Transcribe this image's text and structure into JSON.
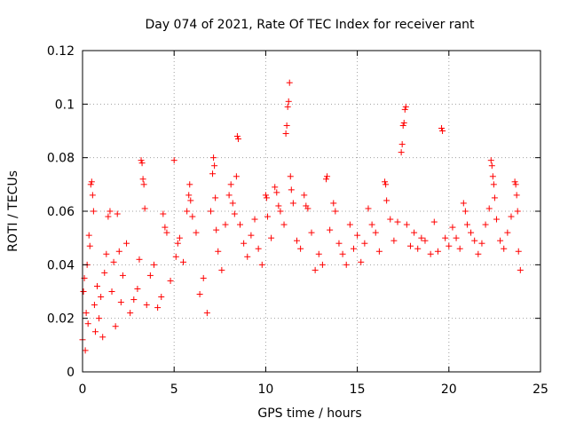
{
  "chart_data": {
    "type": "scatter",
    "title": "Day 074 of 2021, Rate Of TEC Index for receiver rant",
    "xlabel": "GPS time / hours",
    "ylabel": "ROTI / TECUs",
    "xlim": [
      0,
      25
    ],
    "ylim": [
      0,
      0.12
    ],
    "xticks": [
      0,
      5,
      10,
      15,
      20,
      25
    ],
    "xtick_labels": [
      "0",
      "5",
      "10",
      "15",
      "20",
      "25"
    ],
    "yticks": [
      0,
      0.02,
      0.04,
      0.06,
      0.08,
      0.1,
      0.12
    ],
    "ytick_labels": [
      "0",
      "0.02",
      "0.04",
      "0.06",
      "0.08",
      "0.1",
      "0.12"
    ],
    "grid": true,
    "marker": "+",
    "series": [
      {
        "name": "ROTI",
        "color": "#ff0000",
        "points": [
          [
            0.0,
            0.012
          ],
          [
            0.05,
            0.03
          ],
          [
            0.1,
            0.035
          ],
          [
            0.15,
            0.008
          ],
          [
            0.2,
            0.022
          ],
          [
            0.25,
            0.04
          ],
          [
            0.3,
            0.018
          ],
          [
            0.35,
            0.051
          ],
          [
            0.4,
            0.047
          ],
          [
            0.45,
            0.07
          ],
          [
            0.5,
            0.071
          ],
          [
            0.55,
            0.066
          ],
          [
            0.6,
            0.06
          ],
          [
            0.65,
            0.025
          ],
          [
            0.7,
            0.015
          ],
          [
            0.8,
            0.032
          ],
          [
            0.9,
            0.02
          ],
          [
            1.0,
            0.028
          ],
          [
            1.1,
            0.013
          ],
          [
            1.2,
            0.037
          ],
          [
            1.3,
            0.044
          ],
          [
            1.4,
            0.058
          ],
          [
            1.5,
            0.06
          ],
          [
            1.6,
            0.03
          ],
          [
            1.7,
            0.041
          ],
          [
            1.8,
            0.017
          ],
          [
            1.9,
            0.059
          ],
          [
            2.0,
            0.045
          ],
          [
            2.1,
            0.026
          ],
          [
            2.2,
            0.036
          ],
          [
            2.4,
            0.048
          ],
          [
            2.6,
            0.022
          ],
          [
            2.8,
            0.027
          ],
          [
            3.0,
            0.031
          ],
          [
            3.1,
            0.042
          ],
          [
            3.2,
            0.079
          ],
          [
            3.25,
            0.078
          ],
          [
            3.3,
            0.072
          ],
          [
            3.35,
            0.07
          ],
          [
            3.4,
            0.061
          ],
          [
            3.5,
            0.025
          ],
          [
            3.7,
            0.036
          ],
          [
            3.9,
            0.04
          ],
          [
            4.1,
            0.024
          ],
          [
            4.3,
            0.028
          ],
          [
            4.4,
            0.059
          ],
          [
            4.5,
            0.054
          ],
          [
            4.6,
            0.052
          ],
          [
            4.8,
            0.034
          ],
          [
            5.0,
            0.079
          ],
          [
            5.1,
            0.043
          ],
          [
            5.2,
            0.048
          ],
          [
            5.3,
            0.05
          ],
          [
            5.5,
            0.041
          ],
          [
            5.7,
            0.06
          ],
          [
            5.8,
            0.066
          ],
          [
            5.85,
            0.07
          ],
          [
            5.9,
            0.064
          ],
          [
            6.0,
            0.058
          ],
          [
            6.2,
            0.052
          ],
          [
            6.4,
            0.029
          ],
          [
            6.6,
            0.035
          ],
          [
            6.8,
            0.022
          ],
          [
            7.0,
            0.06
          ],
          [
            7.1,
            0.074
          ],
          [
            7.15,
            0.08
          ],
          [
            7.2,
            0.077
          ],
          [
            7.25,
            0.065
          ],
          [
            7.3,
            0.053
          ],
          [
            7.4,
            0.045
          ],
          [
            7.6,
            0.038
          ],
          [
            7.8,
            0.055
          ],
          [
            8.0,
            0.066
          ],
          [
            8.1,
            0.07
          ],
          [
            8.2,
            0.063
          ],
          [
            8.3,
            0.059
          ],
          [
            8.4,
            0.073
          ],
          [
            8.45,
            0.088
          ],
          [
            8.5,
            0.087
          ],
          [
            8.6,
            0.055
          ],
          [
            8.8,
            0.048
          ],
          [
            9.0,
            0.043
          ],
          [
            9.2,
            0.051
          ],
          [
            9.4,
            0.057
          ],
          [
            9.6,
            0.046
          ],
          [
            9.8,
            0.04
          ],
          [
            10.0,
            0.066
          ],
          [
            10.05,
            0.065
          ],
          [
            10.1,
            0.058
          ],
          [
            10.3,
            0.05
          ],
          [
            10.5,
            0.069
          ],
          [
            10.6,
            0.067
          ],
          [
            10.7,
            0.062
          ],
          [
            10.8,
            0.06
          ],
          [
            11.0,
            0.055
          ],
          [
            11.1,
            0.089
          ],
          [
            11.15,
            0.092
          ],
          [
            11.2,
            0.099
          ],
          [
            11.25,
            0.101
          ],
          [
            11.3,
            0.108
          ],
          [
            11.35,
            0.073
          ],
          [
            11.4,
            0.068
          ],
          [
            11.5,
            0.063
          ],
          [
            11.7,
            0.049
          ],
          [
            11.9,
            0.046
          ],
          [
            12.1,
            0.066
          ],
          [
            12.2,
            0.062
          ],
          [
            12.3,
            0.061
          ],
          [
            12.5,
            0.052
          ],
          [
            12.7,
            0.038
          ],
          [
            12.9,
            0.044
          ],
          [
            13.1,
            0.04
          ],
          [
            13.3,
            0.072
          ],
          [
            13.35,
            0.073
          ],
          [
            13.5,
            0.053
          ],
          [
            13.7,
            0.063
          ],
          [
            13.8,
            0.06
          ],
          [
            14.0,
            0.048
          ],
          [
            14.2,
            0.044
          ],
          [
            14.4,
            0.04
          ],
          [
            14.6,
            0.055
          ],
          [
            14.8,
            0.046
          ],
          [
            15.0,
            0.051
          ],
          [
            15.2,
            0.041
          ],
          [
            15.4,
            0.048
          ],
          [
            15.6,
            0.061
          ],
          [
            15.8,
            0.055
          ],
          [
            16.0,
            0.052
          ],
          [
            16.2,
            0.045
          ],
          [
            16.5,
            0.071
          ],
          [
            16.55,
            0.07
          ],
          [
            16.6,
            0.064
          ],
          [
            16.8,
            0.057
          ],
          [
            17.0,
            0.049
          ],
          [
            17.2,
            0.056
          ],
          [
            17.4,
            0.082
          ],
          [
            17.45,
            0.085
          ],
          [
            17.5,
            0.092
          ],
          [
            17.55,
            0.093
          ],
          [
            17.6,
            0.098
          ],
          [
            17.65,
            0.099
          ],
          [
            17.7,
            0.055
          ],
          [
            17.9,
            0.047
          ],
          [
            18.1,
            0.052
          ],
          [
            18.3,
            0.046
          ],
          [
            18.5,
            0.05
          ],
          [
            18.7,
            0.049
          ],
          [
            19.0,
            0.044
          ],
          [
            19.2,
            0.056
          ],
          [
            19.4,
            0.045
          ],
          [
            19.6,
            0.091
          ],
          [
            19.65,
            0.09
          ],
          [
            19.8,
            0.05
          ],
          [
            20.0,
            0.047
          ],
          [
            20.2,
            0.054
          ],
          [
            20.4,
            0.05
          ],
          [
            20.6,
            0.046
          ],
          [
            20.8,
            0.063
          ],
          [
            20.9,
            0.06
          ],
          [
            21.0,
            0.055
          ],
          [
            21.2,
            0.052
          ],
          [
            21.4,
            0.049
          ],
          [
            21.6,
            0.044
          ],
          [
            21.8,
            0.048
          ],
          [
            22.0,
            0.055
          ],
          [
            22.2,
            0.061
          ],
          [
            22.3,
            0.079
          ],
          [
            22.35,
            0.077
          ],
          [
            22.4,
            0.073
          ],
          [
            22.45,
            0.07
          ],
          [
            22.5,
            0.065
          ],
          [
            22.6,
            0.057
          ],
          [
            22.8,
            0.049
          ],
          [
            23.0,
            0.046
          ],
          [
            23.2,
            0.052
          ],
          [
            23.4,
            0.058
          ],
          [
            23.6,
            0.071
          ],
          [
            23.65,
            0.07
          ],
          [
            23.7,
            0.066
          ],
          [
            23.75,
            0.06
          ],
          [
            23.8,
            0.045
          ],
          [
            23.9,
            0.038
          ]
        ]
      }
    ]
  }
}
